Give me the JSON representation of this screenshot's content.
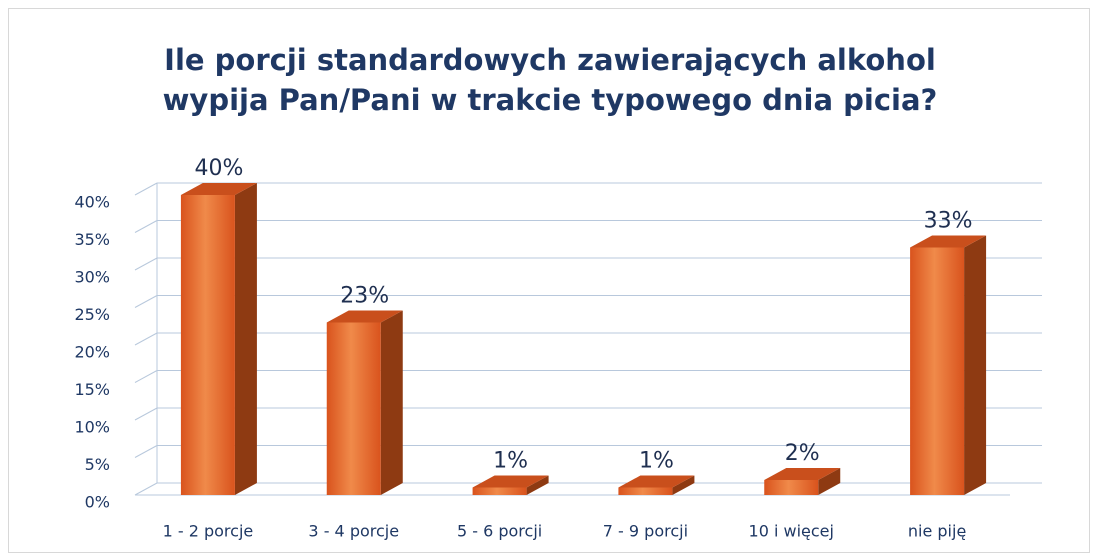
{
  "chart_data": {
    "type": "bar3d",
    "title": "Ile porcji standardowych zawierających alkohol wypija Pan/Pani w trakcie typowego dnia picia?",
    "categories": [
      "1 - 2 porcje",
      "3 - 4 porcje",
      "5 - 6 porcji",
      "7 - 9 porcji",
      "10 i więcej",
      "nie piję"
    ],
    "values": [
      40,
      23,
      1,
      1,
      2,
      33
    ],
    "value_labels": [
      "40%",
      "23%",
      "1%",
      "1%",
      "2%",
      "33%"
    ],
    "color": "#e8642c",
    "ylim": [
      0,
      40
    ],
    "yticks": [
      {
        "value": 0,
        "label": "0%"
      },
      {
        "value": 5,
        "label": "5%"
      },
      {
        "value": 10,
        "label": "10%"
      },
      {
        "value": 15,
        "label": "15%"
      },
      {
        "value": 20,
        "label": "20%"
      },
      {
        "value": 25,
        "label": "25%"
      },
      {
        "value": 30,
        "label": "30%"
      },
      {
        "value": 35,
        "label": "35%"
      },
      {
        "value": 40,
        "label": "40%"
      }
    ],
    "grid": true
  }
}
